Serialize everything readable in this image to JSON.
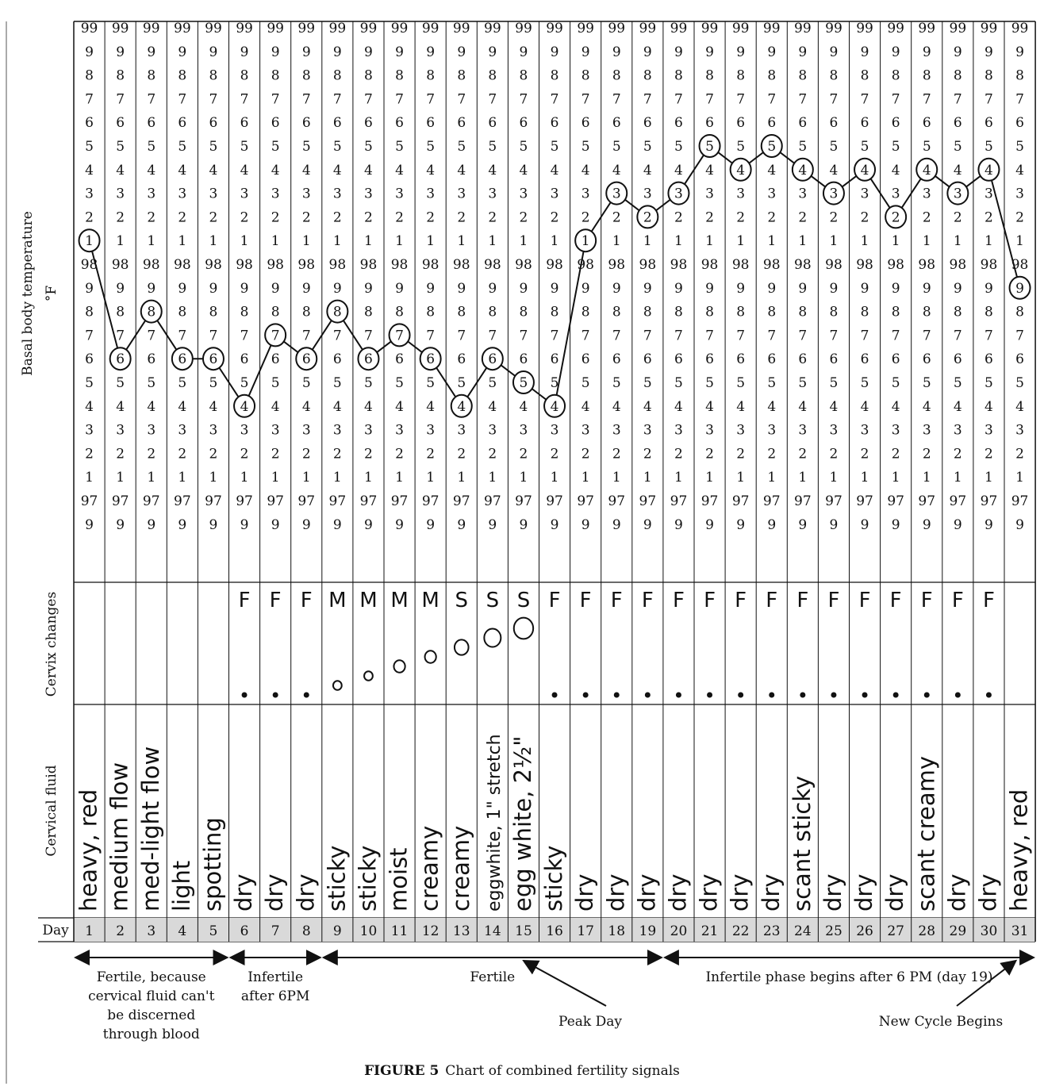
{
  "chart_data": {
    "type": "line",
    "row_labels": {
      "temperature": "Basal body temperature",
      "unit": "°F",
      "cervix": "Cervix changes",
      "fluid": "Cervical fluid",
      "day": "Day"
    },
    "tick_labels": [
      "99",
      "9",
      "8",
      "7",
      "6",
      "5",
      "4",
      "3",
      "2",
      "1",
      "98",
      "9",
      "8",
      "7",
      "6",
      "5",
      "4",
      "3",
      "2",
      "1",
      "97",
      "9"
    ],
    "tick_values": [
      99.0,
      98.9,
      98.8,
      98.7,
      98.6,
      98.5,
      98.4,
      98.3,
      98.2,
      98.1,
      98.0,
      97.9,
      97.8,
      97.7,
      97.6,
      97.5,
      97.4,
      97.3,
      97.2,
      97.1,
      97.0,
      96.9
    ],
    "ylim": [
      96.9,
      99.0
    ],
    "days": [
      1,
      2,
      3,
      4,
      5,
      6,
      7,
      8,
      9,
      10,
      11,
      12,
      13,
      14,
      15,
      16,
      17,
      18,
      19,
      20,
      21,
      22,
      23,
      24,
      25,
      26,
      27,
      28,
      29,
      30,
      31
    ],
    "temperatures": [
      98.1,
      97.6,
      97.8,
      97.6,
      97.6,
      97.4,
      97.7,
      97.6,
      97.8,
      97.6,
      97.7,
      97.6,
      97.4,
      97.6,
      97.5,
      97.4,
      98.1,
      98.3,
      98.2,
      98.3,
      98.5,
      98.4,
      98.5,
      98.4,
      98.3,
      98.4,
      98.2,
      98.4,
      98.3,
      98.4,
      97.9
    ],
    "point_labels": [
      "1",
      "6",
      "8",
      "6",
      "6",
      "4",
      "7",
      "6",
      "8",
      "6",
      "7",
      "6",
      "4",
      "6",
      "5",
      "4",
      "1",
      "3",
      "2",
      "3",
      "5",
      "4",
      "5",
      "4",
      "3",
      "4",
      "2",
      "4",
      "3",
      "4",
      "9"
    ],
    "cervix_position": [
      "",
      "",
      "",
      "",
      "",
      "F",
      "F",
      "F",
      "M",
      "M",
      "M",
      "M",
      "S",
      "S",
      "S",
      "F",
      "F",
      "F",
      "F",
      "F",
      "F",
      "F",
      "F",
      "F",
      "F",
      "F",
      "F",
      "F",
      "F",
      "F",
      ""
    ],
    "cervix_opening": [
      0,
      0,
      0,
      0,
      0,
      1,
      1,
      1,
      2,
      2,
      3,
      3,
      4,
      5,
      6,
      1,
      1,
      1,
      1,
      1,
      1,
      1,
      1,
      1,
      1,
      1,
      1,
      1,
      1,
      1,
      0
    ],
    "cervix_height": [
      0,
      0,
      0,
      0,
      0,
      0,
      0,
      0,
      1,
      2,
      3,
      4,
      5,
      6,
      7,
      0,
      0,
      0,
      0,
      0,
      0,
      0,
      0,
      0,
      0,
      0,
      0,
      0,
      0,
      0,
      0
    ],
    "cervical_fluid": [
      "heavy, red",
      "medium flow",
      "med-light flow",
      "light",
      "spotting",
      "dry",
      "dry",
      "dry",
      "sticky",
      "sticky",
      "moist",
      "creamy",
      "creamy",
      "eggwhite, 1\" stretch",
      "egg white, 2½\"",
      "sticky",
      "dry",
      "dry",
      "dry",
      "dry",
      "dry",
      "dry",
      "dry",
      "scant sticky",
      "dry",
      "dry",
      "dry",
      "scant creamy",
      "dry",
      "dry",
      "heavy, red"
    ],
    "phases": [
      {
        "label_lines": [
          "Fertile, because",
          "cervical fluid can't",
          "be discerned",
          "through blood"
        ],
        "start_day": 1,
        "end_day": 5
      },
      {
        "label_lines": [
          "Infertile",
          "after 6PM"
        ],
        "start_day": 6,
        "end_day": 8
      },
      {
        "label_lines": [
          "Fertile"
        ],
        "start_day": 9,
        "end_day": 19
      },
      {
        "label_lines": [
          "Infertile phase begins after 6 PM (day 19)"
        ],
        "start_day": 20,
        "end_day": 31
      }
    ],
    "annotations": [
      {
        "text": "Peak Day",
        "day": 15
      },
      {
        "text": "New Cycle Begins",
        "day": 31
      }
    ]
  },
  "caption": {
    "figure": "FIGURE 5",
    "text": "Chart of combined fertility signals"
  }
}
